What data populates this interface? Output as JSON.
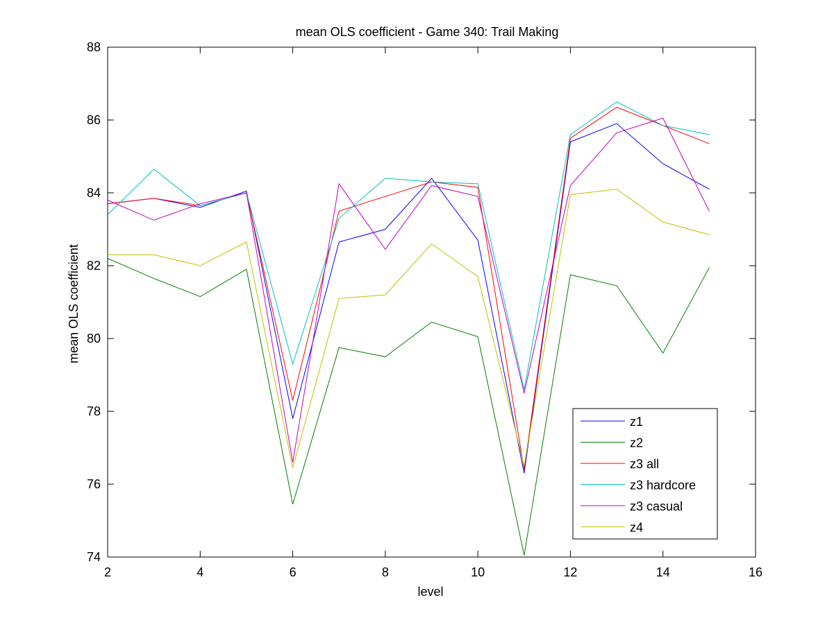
{
  "chart_data": {
    "type": "line",
    "title": "mean OLS coefficient - Game 340: Trail Making",
    "xlabel": "level",
    "ylabel": "mean OLS coefficient",
    "xlim": [
      2,
      16
    ],
    "ylim": [
      74,
      88
    ],
    "xticks": [
      2,
      4,
      6,
      8,
      10,
      12,
      14,
      16
    ],
    "yticks": [
      74,
      76,
      78,
      80,
      82,
      84,
      86,
      88
    ],
    "grid": false,
    "legend_position": "bottom-right",
    "x": [
      2,
      3,
      4,
      5,
      6,
      7,
      8,
      9,
      10,
      11,
      12,
      13,
      14,
      15
    ],
    "series": [
      {
        "name": "z1",
        "color": "#0000ff",
        "values": [
          83.7,
          83.85,
          83.6,
          84.05,
          77.8,
          82.65,
          83.0,
          84.4,
          82.7,
          76.3,
          85.4,
          85.9,
          84.8,
          84.1
        ]
      },
      {
        "name": "z2",
        "color": "#008000",
        "values": [
          82.2,
          81.65,
          81.15,
          81.9,
          75.45,
          79.75,
          79.5,
          80.45,
          80.05,
          74.05,
          81.75,
          81.45,
          79.6,
          81.95
        ]
      },
      {
        "name": "z3 all",
        "color": "#ff0000",
        "values": [
          83.7,
          83.85,
          83.65,
          84.0,
          78.3,
          83.5,
          83.9,
          84.3,
          84.15,
          76.4,
          85.5,
          86.35,
          85.85,
          85.35
        ]
      },
      {
        "name": "z3 hardcore",
        "color": "#00bfbf",
        "values": [
          83.4,
          84.65,
          83.65,
          84.0,
          79.3,
          83.3,
          84.4,
          84.3,
          84.25,
          78.6,
          85.6,
          86.5,
          85.85,
          85.6
        ]
      },
      {
        "name": "z3 casual",
        "color": "#bf00bf",
        "values": [
          83.8,
          83.25,
          83.7,
          84.0,
          76.6,
          84.25,
          82.45,
          84.2,
          83.9,
          78.5,
          84.2,
          85.65,
          86.05,
          83.5
        ]
      },
      {
        "name": "z4",
        "color": "#bfbf00",
        "values": [
          82.3,
          82.3,
          82.0,
          82.65,
          76.45,
          81.1,
          81.2,
          82.6,
          81.7,
          76.5,
          83.95,
          84.1,
          83.2,
          82.85
        ]
      }
    ]
  }
}
